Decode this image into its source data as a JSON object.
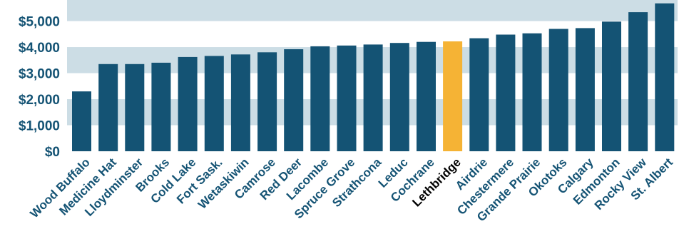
{
  "chart_data": {
    "type": "bar",
    "title": "",
    "xlabel": "",
    "ylabel": "",
    "categories": [
      "Wood Buffalo",
      "Medicine Hat",
      "Lloydminster",
      "Brooks",
      "Cold Lake",
      "Fort Sask.",
      "Wetaskiwin",
      "Camrose",
      "Red Deer",
      "Lacombe",
      "Spruce Grove",
      "Strathcona",
      "Leduc",
      "Cochrane",
      "Lethbridge",
      "Airdrie",
      "Chestermere",
      "Grande Prairie",
      "Okotoks",
      "Calgary",
      "Edmonton",
      "Rocky View",
      "St. Albert"
    ],
    "values": [
      2300,
      3350,
      3350,
      3400,
      3620,
      3660,
      3720,
      3800,
      3920,
      4030,
      4060,
      4100,
      4160,
      4200,
      4220,
      4340,
      4480,
      4530,
      4700,
      4730,
      4980,
      5340,
      5680
    ],
    "ylim": [
      0,
      5700
    ],
    "yticks": [
      0,
      1000,
      2000,
      3000,
      4000,
      5000
    ],
    "ytick_labels": [
      "$0",
      "$1,000",
      "$2,000",
      "$3,000",
      "$4,000",
      "$5,000"
    ],
    "grid": "alternating horizontal bands",
    "highlight_category": "Lethbridge",
    "colors": {
      "bar": "#145374",
      "highlight": "#f5b335",
      "band": "#ccdde5",
      "tick_text": "#145374",
      "highlight_text": "#000000"
    }
  }
}
